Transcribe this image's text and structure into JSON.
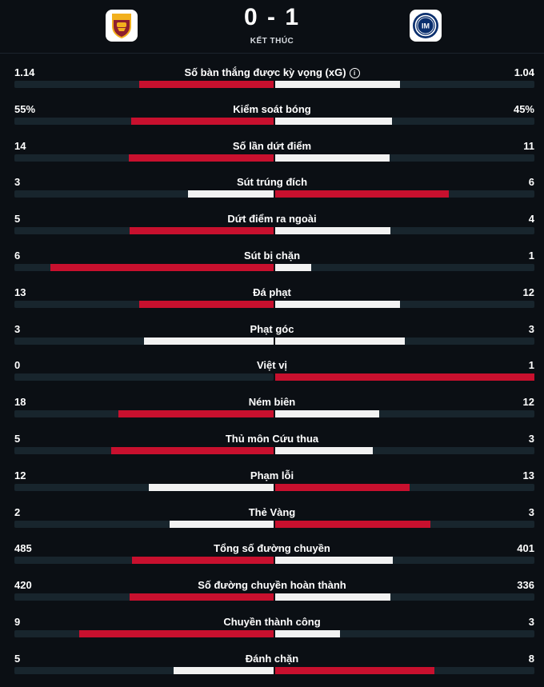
{
  "match": {
    "score": "0 - 1",
    "status": "KẾT THÚC",
    "home_team_icon": "as-roma-crest-icon",
    "away_team_icon": "inter-milan-crest-icon"
  },
  "colors": {
    "leader": "#c8102e",
    "trailer": "#f2f2f2",
    "track": "#18252d",
    "background": "#0b0f14"
  },
  "stats": [
    {
      "label": "Số bàn thắng được kỳ vọng (xG)",
      "home": "1.14",
      "away": "1.04",
      "info": true,
      "home_fill": 0.52,
      "away_fill": 0.48
    },
    {
      "label": "Kiểm soát bóng",
      "home": "55%",
      "away": "45%",
      "home_fill": 0.55,
      "away_fill": 0.45
    },
    {
      "label": "Số lần dứt điểm",
      "home": "14",
      "away": "11",
      "home_fill": 0.56,
      "away_fill": 0.44
    },
    {
      "label": "Sút trúng đích",
      "home": "3",
      "away": "6",
      "home_fill": 0.33,
      "away_fill": 0.67
    },
    {
      "label": "Dứt điểm ra ngoài",
      "home": "5",
      "away": "4",
      "home_fill": 0.555,
      "away_fill": 0.445
    },
    {
      "label": "Sút bị chặn",
      "home": "6",
      "away": "1",
      "home_fill": 0.86,
      "away_fill": 0.14
    },
    {
      "label": "Đá phạt",
      "home": "13",
      "away": "12",
      "home_fill": 0.52,
      "away_fill": 0.48
    },
    {
      "label": "Phạt góc",
      "home": "3",
      "away": "3",
      "home_fill": 0.5,
      "away_fill": 0.5
    },
    {
      "label": "Việt vị",
      "home": "0",
      "away": "1",
      "home_fill": 0.0,
      "away_fill": 1.0
    },
    {
      "label": "Ném biên",
      "home": "18",
      "away": "12",
      "home_fill": 0.6,
      "away_fill": 0.4
    },
    {
      "label": "Thủ môn Cứu thua",
      "home": "5",
      "away": "3",
      "home_fill": 0.625,
      "away_fill": 0.375
    },
    {
      "label": "Phạm lỗi",
      "home": "12",
      "away": "13",
      "home_fill": 0.48,
      "away_fill": 0.52
    },
    {
      "label": "Thẻ Vàng",
      "home": "2",
      "away": "3",
      "home_fill": 0.4,
      "away_fill": 0.6
    },
    {
      "label": "Tổng số đường chuyền",
      "home": "485",
      "away": "401",
      "home_fill": 0.547,
      "away_fill": 0.453
    },
    {
      "label": "Số đường chuyền hoàn thành",
      "home": "420",
      "away": "336",
      "home_fill": 0.556,
      "away_fill": 0.444
    },
    {
      "label": "Chuyền thành công",
      "home": "9",
      "away": "3",
      "home_fill": 0.75,
      "away_fill": 0.25
    },
    {
      "label": "Đánh chặn",
      "home": "5",
      "away": "8",
      "home_fill": 0.385,
      "away_fill": 0.615
    }
  ]
}
